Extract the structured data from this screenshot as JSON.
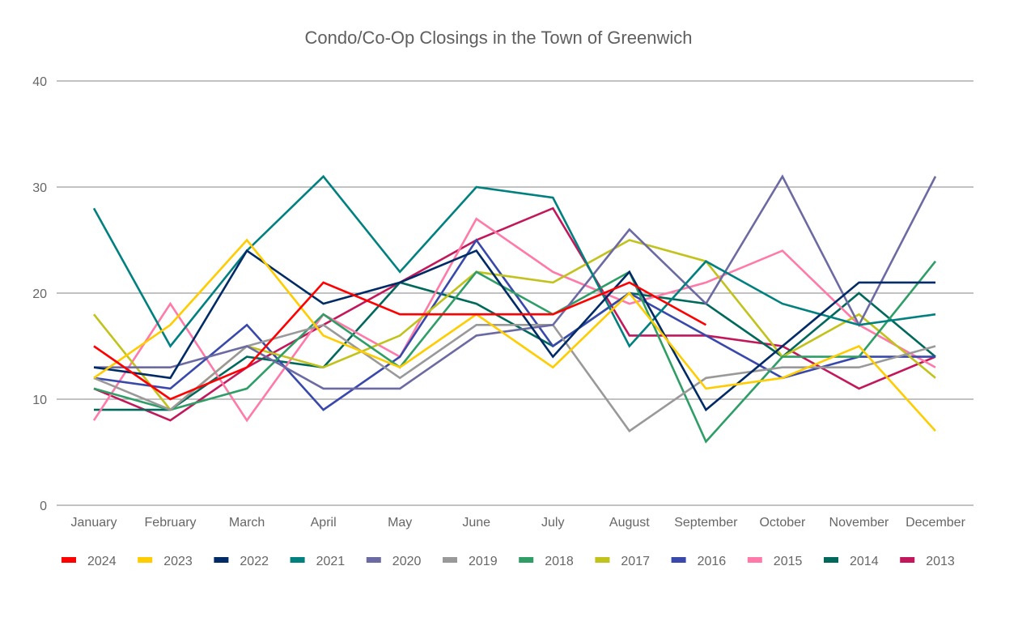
{
  "chart_data": {
    "type": "line",
    "title": "Condo/Co-Op Closings in the Town of Greenwich",
    "xlabel": "",
    "ylabel": "",
    "ylim": [
      0,
      40
    ],
    "yticks": [
      "0",
      "10",
      "20",
      "30",
      "40"
    ],
    "grid": true,
    "legend_position": "bottom",
    "categories": [
      "January",
      "February",
      "March",
      "April",
      "May",
      "June",
      "July",
      "August",
      "September",
      "October",
      "November",
      "December"
    ],
    "series": [
      {
        "name": "2024",
        "color": "#ff0000",
        "values": [
          15,
          10,
          13,
          21,
          18,
          18,
          18,
          21,
          17,
          null,
          null,
          null
        ]
      },
      {
        "name": "2023",
        "color": "#ffcc00",
        "values": [
          12,
          17,
          25,
          16,
          13,
          18,
          13,
          20,
          11,
          12,
          15,
          7
        ]
      },
      {
        "name": "2022",
        "color": "#002b66",
        "values": [
          13,
          12,
          24,
          19,
          21,
          24,
          14,
          22,
          9,
          15,
          21,
          21
        ]
      },
      {
        "name": "2021",
        "color": "#00807f",
        "values": [
          28,
          15,
          24,
          31,
          22,
          30,
          29,
          15,
          23,
          19,
          17,
          18
        ]
      },
      {
        "name": "2020",
        "color": "#6c6aa3",
        "values": [
          13,
          13,
          15,
          11,
          11,
          16,
          17,
          26,
          19,
          31,
          17,
          31
        ]
      },
      {
        "name": "2019",
        "color": "#999999",
        "values": [
          12,
          9,
          15,
          17,
          12,
          17,
          17,
          7,
          12,
          13,
          13,
          15
        ]
      },
      {
        "name": "2018",
        "color": "#2e9e66",
        "values": [
          11,
          9,
          11,
          18,
          13,
          22,
          18,
          22,
          6,
          14,
          14,
          23
        ]
      },
      {
        "name": "2017",
        "color": "#c2c21c",
        "values": [
          18,
          9,
          15,
          13,
          16,
          22,
          21,
          25,
          23,
          14,
          18,
          12
        ]
      },
      {
        "name": "2016",
        "color": "#3949ab",
        "values": [
          12,
          11,
          17,
          9,
          14,
          25,
          15,
          20,
          16,
          12,
          14,
          14
        ]
      },
      {
        "name": "2015",
        "color": "#ff7aa8",
        "values": [
          8,
          19,
          8,
          18,
          14,
          27,
          22,
          19,
          21,
          24,
          17,
          13
        ]
      },
      {
        "name": "2014",
        "color": "#00695c",
        "values": [
          9,
          9,
          14,
          13,
          21,
          19,
          15,
          20,
          19,
          14,
          20,
          14
        ]
      },
      {
        "name": "2013",
        "color": "#c2185b",
        "values": [
          11,
          8,
          13,
          17,
          21,
          25,
          28,
          16,
          16,
          15,
          11,
          14
        ]
      }
    ]
  }
}
